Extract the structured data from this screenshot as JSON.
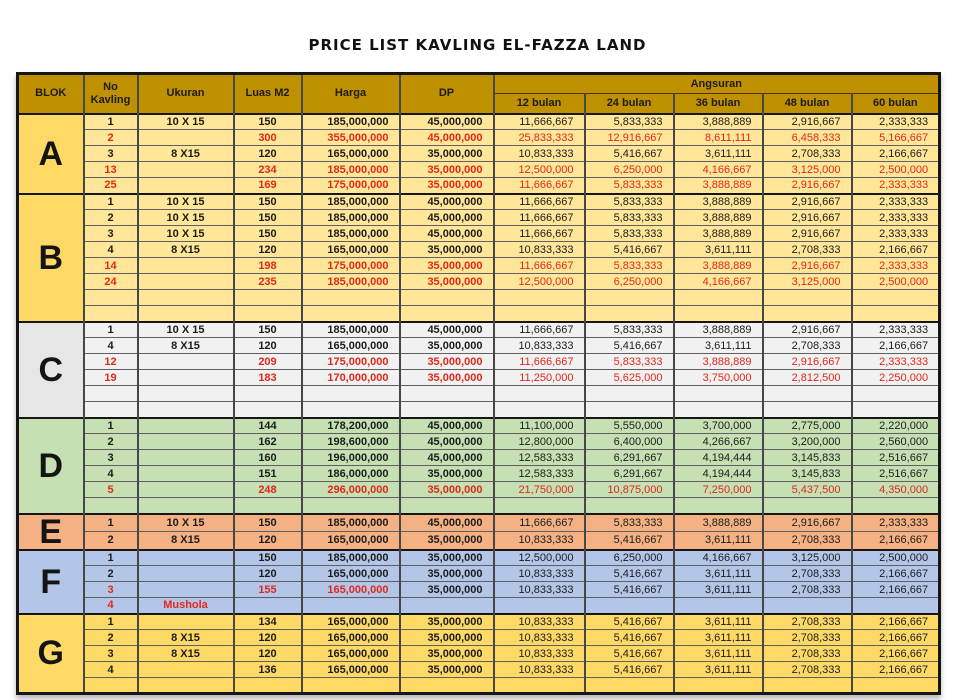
{
  "title": "PRICE LIST KAVLING EL-FAZZA LAND",
  "colors": {
    "header_bg": "#BF9000",
    "red_text": "#E0281D",
    "black_text": "#1c1c1c",
    "block_a_b_letter": "#FFD966",
    "block_a_b_rows": "#FFE699",
    "block_c_letter": "#E7E6E6",
    "block_c_rows": "#F1F1F1",
    "block_d": "#C6E0B4",
    "block_e": "#F4B183",
    "block_f": "#B4C6E7",
    "block_g": "#FFD966"
  },
  "table": {
    "headers": {
      "blok": "BLOK",
      "no_kavling": "No Kavling",
      "ukuran": "Ukuran",
      "luas": "Luas M2",
      "harga": "Harga",
      "dp": "DP",
      "angsuran": "Angsuran",
      "angsuran_cols": [
        "12 bulan",
        "24 bulan",
        "36 bulan",
        "48 bulan",
        "60 bulan"
      ]
    },
    "blocks": [
      {
        "letter": "A",
        "letter_bg": "#FFD966",
        "row_bg": "#FFE699",
        "rows": [
          {
            "no": "1",
            "ukuran": "10 X 15",
            "luas": "150",
            "harga": "185,000,000",
            "dp": "45,000,000",
            "ang": [
              "11,666,667",
              "5,833,333",
              "3,888,889",
              "2,916,667",
              "2,333,333"
            ],
            "red": false
          },
          {
            "no": "2",
            "ukuran": "",
            "luas": "300",
            "harga": "355,000,000",
            "dp": "45,000,000",
            "ang": [
              "25,833,333",
              "12,916,667",
              "8,611,111",
              "6,458,333",
              "5,166,667"
            ],
            "red": true
          },
          {
            "no": "3",
            "ukuran": "8 X15",
            "luas": "120",
            "harga": "165,000,000",
            "dp": "35,000,000",
            "ang": [
              "10,833,333",
              "5,416,667",
              "3,611,111",
              "2,708,333",
              "2,166,667"
            ],
            "red": false
          },
          {
            "no": "13",
            "ukuran": "",
            "luas": "234",
            "harga": "185,000,000",
            "dp": "35,000,000",
            "ang": [
              "12,500,000",
              "6,250,000",
              "4,166,667",
              "3,125,000",
              "2,500,000"
            ],
            "red": true
          },
          {
            "no": "25",
            "ukuran": "",
            "luas": "169",
            "harga": "175,000,000",
            "dp": "35,000,000",
            "ang": [
              "11,666,667",
              "5,833,333",
              "3,888,889",
              "2,916,667",
              "2,333,333"
            ],
            "red": true
          }
        ]
      },
      {
        "letter": "B",
        "letter_bg": "#FFD966",
        "row_bg": "#FFE699",
        "rows": [
          {
            "no": "1",
            "ukuran": "10 X 15",
            "luas": "150",
            "harga": "185,000,000",
            "dp": "45,000,000",
            "ang": [
              "11,666,667",
              "5,833,333",
              "3,888,889",
              "2,916,667",
              "2,333,333"
            ],
            "red": false
          },
          {
            "no": "2",
            "ukuran": "10 X 15",
            "luas": "150",
            "harga": "185,000,000",
            "dp": "45,000,000",
            "ang": [
              "11,666,667",
              "5,833,333",
              "3,888,889",
              "2,916,667",
              "2,333,333"
            ],
            "red": false
          },
          {
            "no": "3",
            "ukuran": "10 X 15",
            "luas": "150",
            "harga": "185,000,000",
            "dp": "45,000,000",
            "ang": [
              "11,666,667",
              "5,833,333",
              "3,888,889",
              "2,916,667",
              "2,333,333"
            ],
            "red": false
          },
          {
            "no": "4",
            "ukuran": "8 X15",
            "luas": "120",
            "harga": "165,000,000",
            "dp": "35,000,000",
            "ang": [
              "10,833,333",
              "5,416,667",
              "3,611,111",
              "2,708,333",
              "2,166,667"
            ],
            "red": false
          },
          {
            "no": "14",
            "ukuran": "",
            "luas": "198",
            "harga": "175,000,000",
            "dp": "35,000,000",
            "ang": [
              "11,666,667",
              "5,833,333",
              "3,888,889",
              "2,916,667",
              "2,333,333"
            ],
            "red": true
          },
          {
            "no": "24",
            "ukuran": "",
            "luas": "235",
            "harga": "185,000,000",
            "dp": "35,000,000",
            "ang": [
              "12,500,000",
              "6,250,000",
              "4,166,667",
              "3,125,000",
              "2,500,000"
            ],
            "red": true
          },
          {
            "blank": true
          },
          {
            "blank": true
          }
        ]
      },
      {
        "letter": "C",
        "letter_bg": "#E7E6E6",
        "row_bg": "#F1F1F1",
        "rows": [
          {
            "no": "1",
            "ukuran": "10 X 15",
            "luas": "150",
            "harga": "185,000,000",
            "dp": "45,000,000",
            "ang": [
              "11,666,667",
              "5,833,333",
              "3,888,889",
              "2,916,667",
              "2,333,333"
            ],
            "red": false
          },
          {
            "no": "4",
            "ukuran": "8 X15",
            "luas": "120",
            "harga": "165,000,000",
            "dp": "35,000,000",
            "ang": [
              "10,833,333",
              "5,416,667",
              "3,611,111",
              "2,708,333",
              "2,166,667"
            ],
            "red": false
          },
          {
            "no": "12",
            "ukuran": "",
            "luas": "209",
            "harga": "175,000,000",
            "dp": "35,000,000",
            "ang": [
              "11,666,667",
              "5,833,333",
              "3,888,889",
              "2,916,667",
              "2,333,333"
            ],
            "red": true
          },
          {
            "no": "19",
            "ukuran": "",
            "luas": "183",
            "harga": "170,000,000",
            "dp": "35,000,000",
            "ang": [
              "11,250,000",
              "5,625,000",
              "3,750,000",
              "2,812,500",
              "2,250,000"
            ],
            "red": true
          },
          {
            "blank": true
          },
          {
            "blank": true
          }
        ]
      },
      {
        "letter": "D",
        "letter_bg": "#C6E0B4",
        "row_bg": "#C6E0B4",
        "rows": [
          {
            "no": "1",
            "ukuran": "",
            "luas": "144",
            "harga": "178,200,000",
            "dp": "45,000,000",
            "ang": [
              "11,100,000",
              "5,550,000",
              "3,700,000",
              "2,775,000",
              "2,220,000"
            ],
            "red": false
          },
          {
            "no": "2",
            "ukuran": "",
            "luas": "162",
            "harga": "198,600,000",
            "dp": "45,000,000",
            "ang": [
              "12,800,000",
              "6,400,000",
              "4,266,667",
              "3,200,000",
              "2,560,000"
            ],
            "red": false
          },
          {
            "no": "3",
            "ukuran": "",
            "luas": "160",
            "harga": "196,000,000",
            "dp": "45,000,000",
            "ang": [
              "12,583,333",
              "6,291,667",
              "4,194,444",
              "3,145,833",
              "2,516,667"
            ],
            "red": false
          },
          {
            "no": "4",
            "ukuran": "",
            "luas": "151",
            "harga": "186,000,000",
            "dp": "35,000,000",
            "ang": [
              "12,583,333",
              "6,291,667",
              "4,194,444",
              "3,145,833",
              "2,516,667"
            ],
            "red": false
          },
          {
            "no": "5",
            "ukuran": "",
            "luas": "248",
            "harga": "296,000,000",
            "dp": "35,000,000",
            "ang": [
              "21,750,000",
              "10,875,000",
              "7,250,000",
              "5,437,500",
              "4,350,000"
            ],
            "red": true
          },
          {
            "blank": true
          }
        ]
      },
      {
        "letter": "E",
        "letter_bg": "#F4B183",
        "row_bg": "#F4B183",
        "rows": [
          {
            "no": "1",
            "ukuran": "10 X 15",
            "luas": "150",
            "harga": "185,000,000",
            "dp": "45,000,000",
            "ang": [
              "11,666,667",
              "5,833,333",
              "3,888,889",
              "2,916,667",
              "2,333,333"
            ],
            "red": false
          },
          {
            "no": "2",
            "ukuran": "8 X15",
            "luas": "120",
            "harga": "165,000,000",
            "dp": "35,000,000",
            "ang": [
              "10,833,333",
              "5,416,667",
              "3,611,111",
              "2,708,333",
              "2,166,667"
            ],
            "red": false
          }
        ]
      },
      {
        "letter": "F",
        "letter_bg": "#B4C6E7",
        "row_bg": "#B4C6E7",
        "rows": [
          {
            "no": "1",
            "ukuran": "",
            "luas": "150",
            "harga": "185,000,000",
            "dp": "35,000,000",
            "ang": [
              "12,500,000",
              "6,250,000",
              "4,166,667",
              "3,125,000",
              "2,500,000"
            ],
            "red": false
          },
          {
            "no": "2",
            "ukuran": "",
            "luas": "120",
            "harga": "165,000,000",
            "dp": "35,000,000",
            "ang": [
              "10,833,333",
              "5,416,667",
              "3,611,111",
              "2,708,333",
              "2,166,667"
            ],
            "red": false
          },
          {
            "no": "3",
            "ukuran": "",
            "luas": "155",
            "harga": "165,000,000",
            "dp": "35,000,000",
            "ang": [
              "10,833,333",
              "5,416,667",
              "3,611,111",
              "2,708,333",
              "2,166,667"
            ],
            "red": false,
            "red_cells": [
              "no",
              "luas",
              "harga"
            ]
          },
          {
            "no": "4",
            "ukuran": "Mushola",
            "luas": "",
            "harga": "",
            "dp": "",
            "ang": [
              "",
              "",
              "",
              "",
              ""
            ],
            "red": false,
            "red_cells": [
              "no",
              "ukuran"
            ]
          }
        ]
      },
      {
        "letter": "G",
        "letter_bg": "#FFD966",
        "row_bg": "#FFD966",
        "rows": [
          {
            "no": "1",
            "ukuran": "",
            "luas": "134",
            "harga": "165,000,000",
            "dp": "35,000,000",
            "ang": [
              "10,833,333",
              "5,416,667",
              "3,611,111",
              "2,708,333",
              "2,166,667"
            ],
            "red": false
          },
          {
            "no": "2",
            "ukuran": "8 X15",
            "luas": "120",
            "harga": "165,000,000",
            "dp": "35,000,000",
            "ang": [
              "10,833,333",
              "5,416,667",
              "3,611,111",
              "2,708,333",
              "2,166,667"
            ],
            "red": false
          },
          {
            "no": "3",
            "ukuran": "8 X15",
            "luas": "120",
            "harga": "165,000,000",
            "dp": "35,000,000",
            "ang": [
              "10,833,333",
              "5,416,667",
              "3,611,111",
              "2,708,333",
              "2,166,667"
            ],
            "red": false
          },
          {
            "no": "4",
            "ukuran": "",
            "luas": "136",
            "harga": "165,000,000",
            "dp": "35,000,000",
            "ang": [
              "10,833,333",
              "5,416,667",
              "3,611,111",
              "2,708,333",
              "2,166,667"
            ],
            "red": false
          },
          {
            "blank": true
          }
        ]
      }
    ]
  }
}
